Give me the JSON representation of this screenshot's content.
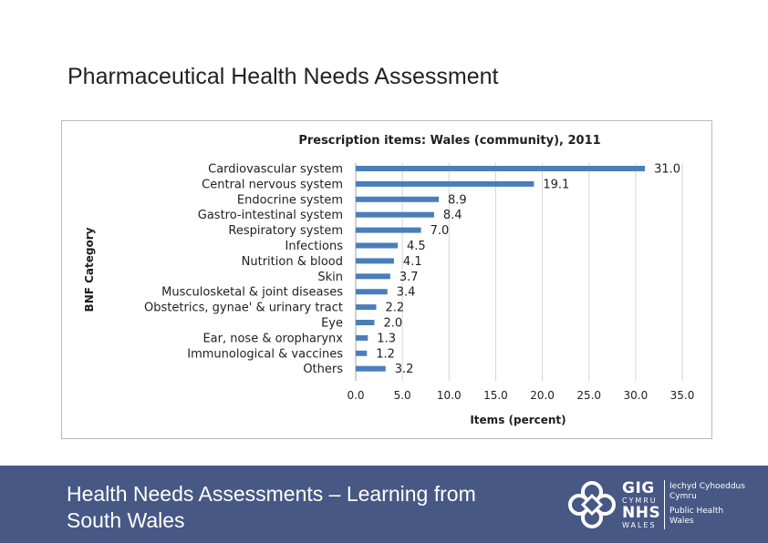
{
  "slide": {
    "title": "Pharmaceutical Health Needs Assessment",
    "footer_text": "Health Needs Assessments – Learning from South Wales"
  },
  "logo": {
    "gig": "GIG",
    "cymru": "CYMRU",
    "nhs": "NHS",
    "wales": "WALES",
    "line1": "Iechyd Cyhoeddus",
    "line2": "Cymru",
    "line3": "Public Health",
    "line4": "Wales"
  },
  "colors": {
    "bar": "#4a7ebb",
    "footer_bg": "#475885",
    "grid": "#d4d4d4"
  },
  "chart_data": {
    "type": "bar",
    "orientation": "horizontal",
    "title": "Prescription items: Wales (community), 2011",
    "xlabel": "Items (percent)",
    "ylabel": "BNF Category",
    "xlim": [
      0,
      35
    ],
    "xticks": [
      "0.0",
      "5.0",
      "10.0",
      "15.0",
      "20.0",
      "25.0",
      "30.0",
      "35.0"
    ],
    "grid": "vertical",
    "legend": "none",
    "categories": [
      "Cardiovascular system",
      "Central nervous system",
      "Endocrine system",
      "Gastro-intestinal system",
      "Respiratory system",
      "Infections",
      "Nutrition & blood",
      "Skin",
      "Musculosketal & joint diseases",
      "Obstetrics, gynae' & urinary tract",
      "Eye",
      "Ear, nose & oropharynx",
      "Immunological  & vaccines",
      "Others"
    ],
    "values": [
      31.0,
      19.1,
      8.9,
      8.4,
      7.0,
      4.5,
      4.1,
      3.7,
      3.4,
      2.2,
      2.0,
      1.3,
      1.2,
      3.2
    ],
    "value_labels": [
      "31.0",
      "19.1",
      "8.9",
      "8.4",
      "7.0",
      "4.5",
      "4.1",
      "3.7",
      "3.4",
      "2.2",
      "2.0",
      "1.3",
      "1.2",
      "3.2"
    ]
  }
}
